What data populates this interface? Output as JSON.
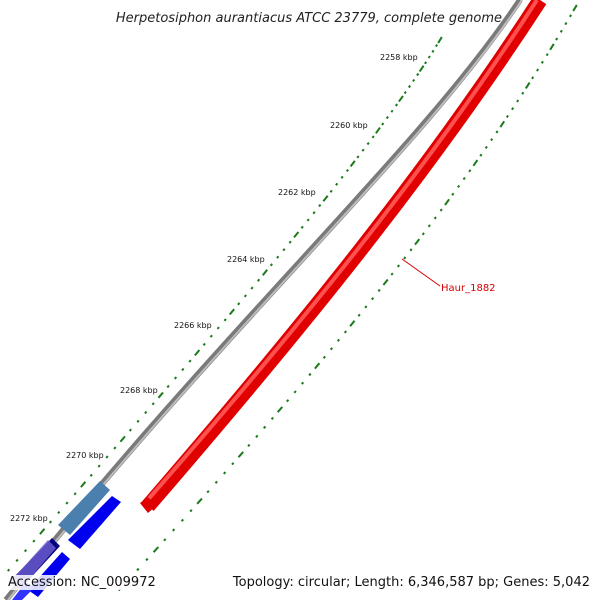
{
  "title": "Herpetosiphon aurantiacus ATCC 23779, complete genome",
  "footer": {
    "accession": "Accession: NC_009972",
    "stats": "Topology: circular; Length: 6,346,587 bp; Genes: 5,042"
  },
  "ticks": [
    "2258 kbp",
    "2260 kbp",
    "2262 kbp",
    "2264 kbp",
    "2266 kbp",
    "2268 kbp",
    "2270 kbp",
    "2272 kbp"
  ],
  "gene_label": "Haur_1882",
  "colors": {
    "backbone": "#8a8a8a",
    "gene_red": "#ff0000",
    "gene_blue": "#0000ff",
    "gene_steel": "#4682b4",
    "gene_navy": "#000080",
    "gene_violet": "#6a5acd",
    "tick_green": "#1a7a1a",
    "label_red": "#d40000"
  }
}
